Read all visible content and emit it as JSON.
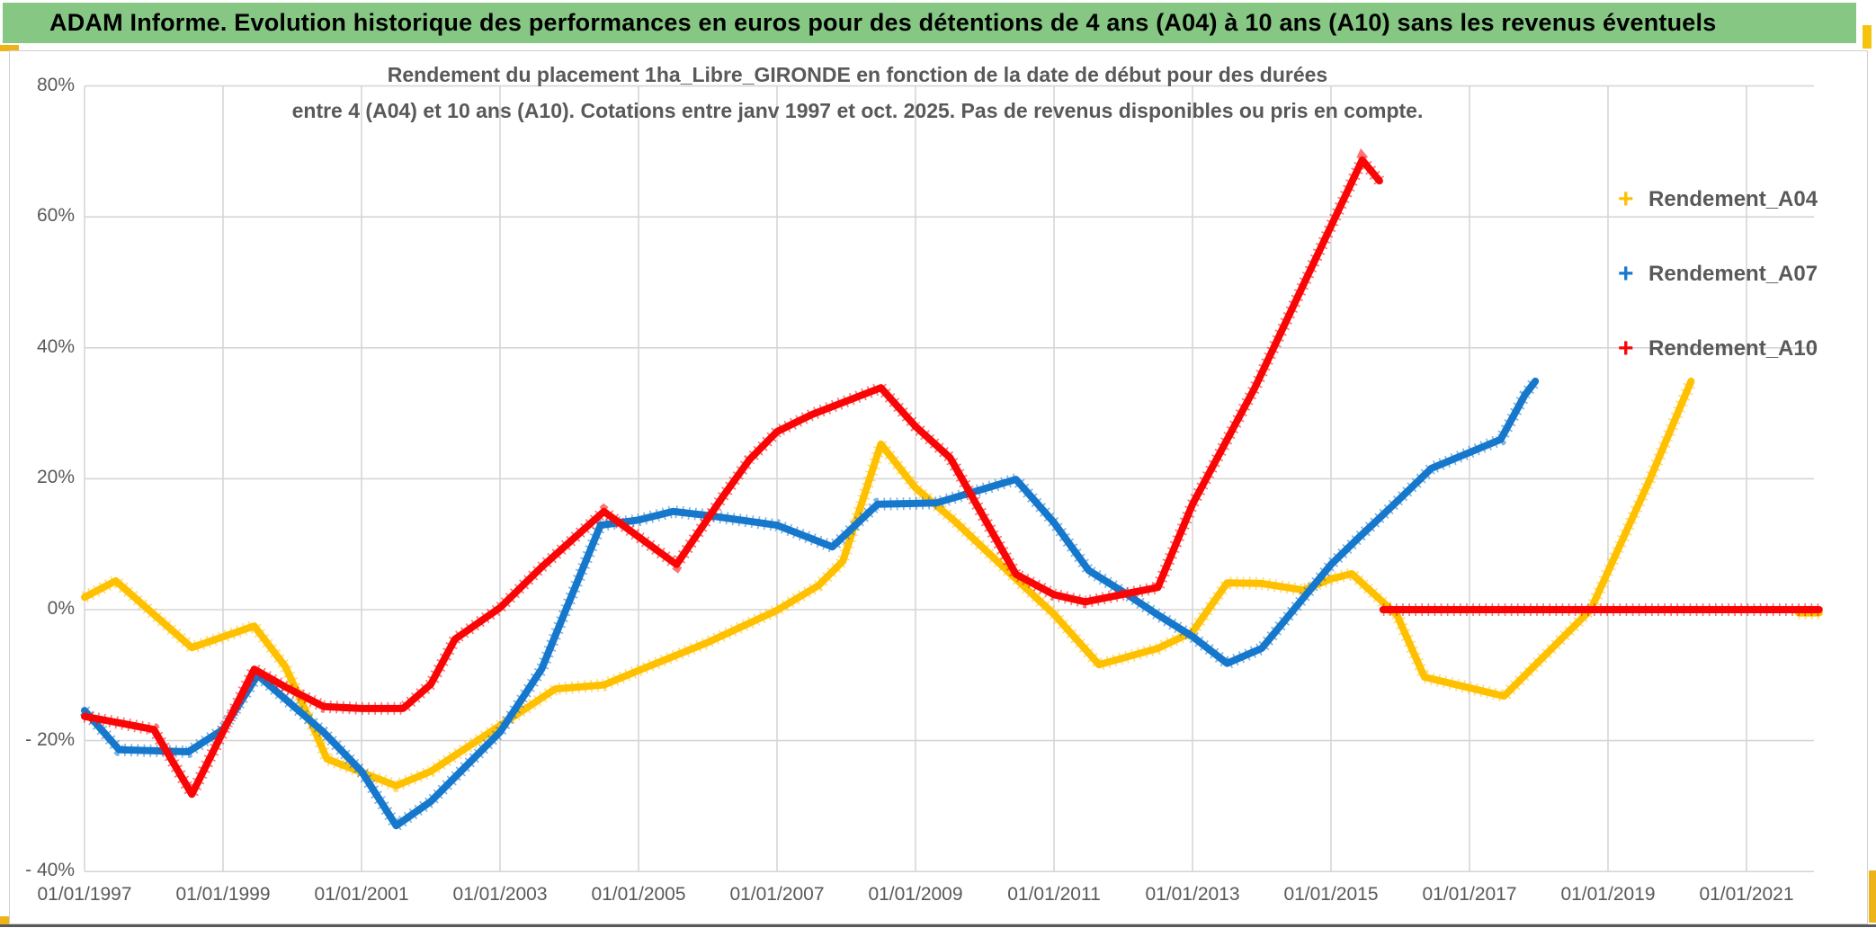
{
  "banner": {
    "title": "ADAM Informe. Evolution historique des performances en euros pour des détentions de 4 ans (A04) à 10 ans (A10) sans les revenus éventuels"
  },
  "chart": {
    "subtitle_line1": "Rendement du placement 1ha_Libre_GIRONDE en fonction de la date de début pour des durées",
    "subtitle_line2": "entre 4 (A04) et 10 ans (A10). Cotations entre janv 1997 et oct. 2025. Pas de revenus disponibles ou pris en compte.",
    "colors": {
      "grid": "#D6D6D6",
      "axis_text": "#595959",
      "banner_green": "#85C783",
      "accent_yellow": "#EFB31A"
    }
  },
  "chart_data": {
    "type": "line",
    "title": "Rendement du placement 1ha_Libre_GIRONDE en fonction de la date de début pour des durées entre 4 (A04) et 10 ans (A10). Cotations entre janv 1997 et oct. 2025. Pas de revenus disponibles ou pris en compte.",
    "xlabel": "",
    "ylabel": "",
    "grid": true,
    "legend_position": "right",
    "x_axis": {
      "tick_labels": [
        "01/01/1997",
        "01/01/1999",
        "01/01/2001",
        "01/01/2003",
        "01/01/2005",
        "01/01/2007",
        "01/01/2009",
        "01/01/2011",
        "01/01/2013",
        "01/01/2015",
        "01/01/2017",
        "01/01/2019",
        "01/01/2021"
      ],
      "tick_years": [
        1997,
        1999,
        2001,
        2003,
        2005,
        2007,
        2009,
        2011,
        2013,
        2015,
        2017,
        2019,
        2021
      ],
      "range": [
        1997,
        2022.8
      ]
    },
    "y_axis": {
      "tick_labels": [
        "80%",
        "60%",
        "40%",
        "20%",
        "0%",
        "- 20%",
        "- 40%"
      ],
      "tick_values": [
        80,
        60,
        40,
        20,
        0,
        -20,
        -40
      ],
      "range": [
        -40,
        80
      ],
      "unit": "percent"
    },
    "series": [
      {
        "name": "Rendement_A04",
        "color": "#FFC000",
        "marker": "+",
        "segments": [
          [
            [
              1997.0,
              1.9
            ],
            [
              1997.45,
              4.4
            ],
            [
              1998.55,
              -5.8
            ],
            [
              1999.45,
              -2.5
            ],
            [
              1999.9,
              -8.7
            ],
            [
              2000.3,
              -17.9
            ],
            [
              2000.5,
              -22.8
            ],
            [
              2001.5,
              -26.9
            ],
            [
              2002.0,
              -24.7
            ],
            [
              2003.0,
              -17.7
            ],
            [
              2003.8,
              -12.1
            ],
            [
              2004.5,
              -11.5
            ],
            [
              2005.0,
              -9.3
            ],
            [
              2006.0,
              -5.0
            ],
            [
              2007.0,
              -0.1
            ],
            [
              2007.6,
              3.7
            ],
            [
              2007.95,
              7.4
            ],
            [
              2008.5,
              25.3
            ],
            [
              2009.0,
              18.6
            ],
            [
              2009.55,
              13.7
            ],
            [
              2010.45,
              4.7
            ],
            [
              2011.0,
              -0.7
            ],
            [
              2011.65,
              -8.4
            ],
            [
              2012.5,
              -5.9
            ],
            [
              2013.0,
              -3.4
            ],
            [
              2013.5,
              4.1
            ],
            [
              2014.0,
              4.0
            ],
            [
              2014.6,
              3.0
            ],
            [
              2015.0,
              4.7
            ],
            [
              2015.3,
              5.5
            ],
            [
              2015.95,
              -0.8
            ],
            [
              2016.35,
              -10.3
            ],
            [
              2017.5,
              -13.2
            ],
            [
              2018.75,
              0.0
            ],
            [
              2019.6,
              19.8
            ],
            [
              2020.2,
              34.9
            ]
          ],
          [
            [
              2021.75,
              -0.5
            ],
            [
              2022.05,
              -0.5
            ]
          ]
        ]
      },
      {
        "name": "Rendement_A07",
        "color": "#1678CC",
        "marker": "+",
        "segments": [
          [
            [
              1997.0,
              -15.4
            ],
            [
              1997.5,
              -21.4
            ],
            [
              1998.5,
              -21.7
            ],
            [
              1999.0,
              -18.3
            ],
            [
              1999.5,
              -10.0
            ],
            [
              2000.45,
              -18.7
            ],
            [
              2001.0,
              -24.7
            ],
            [
              2001.5,
              -33.0
            ],
            [
              2002.0,
              -29.3
            ],
            [
              2003.0,
              -18.7
            ],
            [
              2003.6,
              -9.1
            ],
            [
              2004.45,
              12.9
            ],
            [
              2005.0,
              13.7
            ],
            [
              2005.5,
              15.0
            ],
            [
              2006.0,
              14.4
            ],
            [
              2007.0,
              12.9
            ],
            [
              2007.8,
              9.6
            ],
            [
              2008.45,
              16.1
            ],
            [
              2009.3,
              16.3
            ],
            [
              2010.45,
              19.9
            ],
            [
              2011.0,
              13.3
            ],
            [
              2011.5,
              6.0
            ],
            [
              2012.0,
              2.7
            ],
            [
              2012.5,
              -0.8
            ],
            [
              2013.0,
              -4.1
            ],
            [
              2013.5,
              -8.2
            ],
            [
              2014.0,
              -5.9
            ],
            [
              2015.0,
              6.9
            ],
            [
              2015.4,
              11.0
            ],
            [
              2015.95,
              16.5
            ],
            [
              2016.45,
              21.6
            ],
            [
              2017.45,
              26.0
            ],
            [
              2017.8,
              32.8
            ],
            [
              2017.95,
              34.9
            ]
          ]
        ]
      },
      {
        "name": "Rendement_A10",
        "color": "#FA0505",
        "marker": "+",
        "segments": [
          [
            [
              1997.0,
              -16.3
            ],
            [
              1997.3,
              -16.9
            ],
            [
              1998.0,
              -18.3
            ],
            [
              1998.55,
              -28.2
            ],
            [
              1999.45,
              -9.1
            ],
            [
              1999.9,
              -11.8
            ],
            [
              2000.45,
              -14.8
            ],
            [
              2001.0,
              -15.1
            ],
            [
              2001.6,
              -15.1
            ],
            [
              2002.0,
              -11.4
            ],
            [
              2002.35,
              -4.5
            ],
            [
              2003.0,
              0.3
            ],
            [
              2003.6,
              6.5
            ],
            [
              2004.5,
              15.0
            ],
            [
              2005.55,
              6.9
            ],
            [
              2006.2,
              17.0
            ],
            [
              2006.6,
              22.9
            ],
            [
              2007.0,
              27.2
            ],
            [
              2007.5,
              29.8
            ],
            [
              2008.5,
              33.9
            ],
            [
              2009.0,
              28.0
            ],
            [
              2009.5,
              23.2
            ],
            [
              2010.45,
              5.4
            ],
            [
              2011.0,
              2.3
            ],
            [
              2011.45,
              1.2
            ],
            [
              2012.5,
              3.4
            ],
            [
              2013.0,
              16.1
            ],
            [
              2013.9,
              33.9
            ],
            [
              2015.45,
              68.7
            ],
            [
              2015.7,
              65.5
            ]
          ],
          [
            [
              2015.75,
              0.0
            ],
            [
              2022.05,
              0.0
            ]
          ]
        ]
      }
    ],
    "legend": [
      {
        "label": "Rendement_A04",
        "color": "#FFC000"
      },
      {
        "label": "Rendement_A07",
        "color": "#1678CC"
      },
      {
        "label": "Rendement_A10",
        "color": "#FA0505"
      }
    ]
  }
}
